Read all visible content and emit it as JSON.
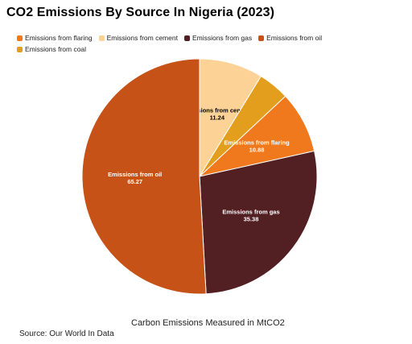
{
  "chart_data": {
    "type": "pie",
    "title": "CO2 Emissions By Source In Nigeria (2023)",
    "legend_position": "top-left",
    "slices": [
      {
        "label": "Emissions from cement",
        "value": 11.24,
        "color": "#FDD296",
        "text_color": "#000000",
        "data_label": true
      },
      {
        "label": "Emissions from coal",
        "value": 5.5,
        "color": "#E39E1E",
        "text_color": "#000000",
        "data_label": false
      },
      {
        "label": "Emissions from flaring",
        "value": 10.88,
        "color": "#F0791E",
        "text_color": "#ffffff",
        "data_label": true
      },
      {
        "label": "Emissions from gas",
        "value": 35.38,
        "color": "#521F23",
        "text_color": "#ffffff",
        "data_label": true
      },
      {
        "label": "Emissions from oil",
        "value": 65.27,
        "color": "#C65217",
        "text_color": "#ffffff",
        "data_label": true
      }
    ],
    "legend": [
      {
        "label": "Emissions from flaring",
        "color": "#F0791E"
      },
      {
        "label": "Emissions from cement",
        "color": "#FDD296"
      },
      {
        "label": "Emissions from gas",
        "color": "#521F23"
      },
      {
        "label": "Emissions from oil",
        "color": "#C65217"
      },
      {
        "label": "Emissions from coal",
        "color": "#E39E1E"
      }
    ]
  },
  "footnote": "Carbon Emissions Measured in MtCO2",
  "source": "Source:  Our World In Data"
}
